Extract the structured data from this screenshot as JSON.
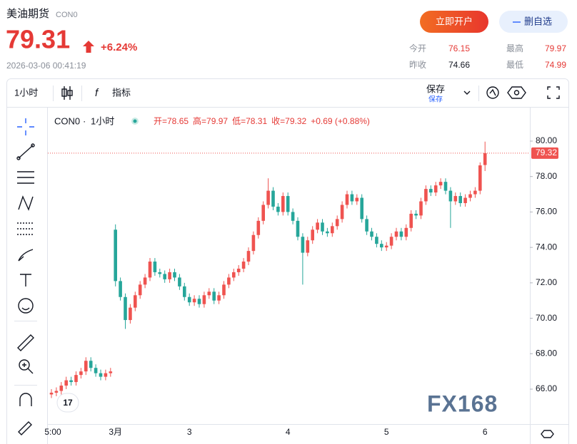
{
  "header": {
    "title": "美油期货",
    "code": "CON0",
    "price": "79.31",
    "change": "+6.24%",
    "time": "2026-03-06 00:41:19",
    "open_button": "立即开户",
    "remove_button": "删自选",
    "stats": [
      {
        "label": "今开",
        "value": "76.15"
      },
      {
        "label": "最高",
        "value": "79.97"
      },
      {
        "label": "昨收",
        "value": "74.66"
      },
      {
        "label": "最低",
        "value": "74.99"
      }
    ]
  },
  "toolbar": {
    "interval": "1小时",
    "indicators": "指标",
    "save": "保存",
    "save_sub": "保存"
  },
  "chart_data": {
    "type": "candlestick",
    "legend": {
      "symbol": "CON0",
      "interval": "1小时",
      "items": [
        "开=78.65",
        "高=79.97",
        "低=78.31",
        "收=79.32",
        "+0.69 (+0.88%)"
      ]
    },
    "categories": [
      "5:00",
      null,
      null,
      null,
      null,
      null,
      null,
      null,
      null,
      null,
      null,
      null,
      null,
      "3月",
      null,
      null,
      null,
      null,
      null,
      null,
      null,
      null,
      null,
      null,
      null,
      null,
      null,
      null,
      "3",
      null,
      null,
      null,
      null,
      null,
      null,
      null,
      null,
      null,
      null,
      null,
      null,
      null,
      null,
      null,
      null,
      null,
      null,
      null,
      "4",
      null,
      null,
      null,
      null,
      null,
      null,
      null,
      null,
      null,
      null,
      null,
      null,
      null,
      null,
      null,
      null,
      null,
      null,
      null,
      "5",
      null,
      null,
      null,
      null,
      null,
      null,
      null,
      null,
      null,
      null,
      null,
      null,
      null,
      null,
      null,
      null,
      null,
      null,
      null,
      "6"
    ],
    "open": [
      65.7,
      65.8,
      65.9,
      66.2,
      66.5,
      66.4,
      66.8,
      67.0,
      67.6,
      67.2,
      66.9,
      66.7,
      66.9,
      75.0,
      72.1,
      71.2,
      69.9,
      70.6,
      71.3,
      71.9,
      72.3,
      73.2,
      72.6,
      72.5,
      72.2,
      72.6,
      72.3,
      71.8,
      71.2,
      70.9,
      71.1,
      70.8,
      71.3,
      71.5,
      71.0,
      71.3,
      71.9,
      72.3,
      72.6,
      72.8,
      73.2,
      73.8,
      74.7,
      75.5,
      76.4,
      77.2,
      76.3,
      76.0,
      76.9,
      76.0,
      75.5,
      74.6,
      73.7,
      74.4,
      75.0,
      75.4,
      74.9,
      74.8,
      75.2,
      75.6,
      76.4,
      77.0,
      76.6,
      76.8,
      75.6,
      74.9,
      74.6,
      74.2,
      74.0,
      74.1,
      74.6,
      74.9,
      74.6,
      75.1,
      75.9,
      75.8,
      76.6,
      77.3,
      77.1,
      77.5,
      77.7,
      77.2,
      76.6,
      76.9,
      76.5,
      76.8,
      77.0,
      77.2,
      78.65
    ],
    "high": [
      66.0,
      66.1,
      66.4,
      66.7,
      66.7,
      67.0,
      67.2,
      67.8,
      67.8,
      67.4,
      67.1,
      67.1,
      67.2,
      75.3,
      72.3,
      71.4,
      70.8,
      71.5,
      72.1,
      72.5,
      73.4,
      73.4,
      72.8,
      72.7,
      72.8,
      72.8,
      72.5,
      72.0,
      71.4,
      71.3,
      71.3,
      71.5,
      71.7,
      71.7,
      71.5,
      72.1,
      72.5,
      72.8,
      73.0,
      73.4,
      74.0,
      74.9,
      75.7,
      76.6,
      77.9,
      77.4,
      76.5,
      77.1,
      77.1,
      76.2,
      75.7,
      74.8,
      74.6,
      75.2,
      75.6,
      75.6,
      75.1,
      75.4,
      75.8,
      76.6,
      77.2,
      77.2,
      77.0,
      77.0,
      75.8,
      75.1,
      74.8,
      74.4,
      74.3,
      74.8,
      75.1,
      75.1,
      75.3,
      76.1,
      76.1,
      76.8,
      77.5,
      77.5,
      77.7,
      77.9,
      77.9,
      77.4,
      77.1,
      77.1,
      77.0,
      77.2,
      77.4,
      78.8,
      79.97
    ],
    "low": [
      65.5,
      65.6,
      65.7,
      66.0,
      66.2,
      66.2,
      66.6,
      66.8,
      67.0,
      66.7,
      66.5,
      66.5,
      66.7,
      71.8,
      71.0,
      69.4,
      69.7,
      70.4,
      71.1,
      71.7,
      72.1,
      72.4,
      72.3,
      72.0,
      72.0,
      72.1,
      71.6,
      71.0,
      70.7,
      70.7,
      70.6,
      70.6,
      71.1,
      70.8,
      70.8,
      71.1,
      71.7,
      72.1,
      72.4,
      72.6,
      73.0,
      73.6,
      74.5,
      75.3,
      76.2,
      76.1,
      75.8,
      75.8,
      75.8,
      75.3,
      74.4,
      71.9,
      73.5,
      74.2,
      74.8,
      74.7,
      74.6,
      74.6,
      75.0,
      75.4,
      76.2,
      76.4,
      76.4,
      75.4,
      74.7,
      74.4,
      74.0,
      73.8,
      73.8,
      73.9,
      74.4,
      74.4,
      74.4,
      74.9,
      75.6,
      75.6,
      76.4,
      76.9,
      76.9,
      77.3,
      77.0,
      75.1,
      76.4,
      76.3,
      76.3,
      76.6,
      76.8,
      77.0,
      78.31
    ],
    "close": [
      65.8,
      65.9,
      66.2,
      66.5,
      66.4,
      66.8,
      67.0,
      67.6,
      67.2,
      66.9,
      66.7,
      66.9,
      67.0,
      72.1,
      71.2,
      69.9,
      70.6,
      71.3,
      71.9,
      72.3,
      73.2,
      72.6,
      72.5,
      72.2,
      72.6,
      72.3,
      71.8,
      71.2,
      70.9,
      71.1,
      70.8,
      71.3,
      71.5,
      71.0,
      71.3,
      71.9,
      72.3,
      72.6,
      72.8,
      73.2,
      73.8,
      74.7,
      75.5,
      76.4,
      77.2,
      76.3,
      76.0,
      76.9,
      76.0,
      75.5,
      74.6,
      73.7,
      74.4,
      75.0,
      75.4,
      74.9,
      74.8,
      75.2,
      75.6,
      76.4,
      77.0,
      76.6,
      76.8,
      75.6,
      74.9,
      74.6,
      74.2,
      74.0,
      74.1,
      74.6,
      74.9,
      74.6,
      75.1,
      75.9,
      75.8,
      76.6,
      77.3,
      77.1,
      77.5,
      77.7,
      77.2,
      76.6,
      76.9,
      76.5,
      76.8,
      77.0,
      77.2,
      78.63,
      79.32
    ],
    "up_color": "#ef5350",
    "down_color": "#26a69a",
    "ylim": [
      64.03,
      81.89
    ],
    "yticks": [
      {
        "value": 66,
        "label": "66.00"
      },
      {
        "value": 68,
        "label": "68.00"
      },
      {
        "value": 70,
        "label": "70.00"
      },
      {
        "value": 72,
        "label": "72.00"
      },
      {
        "value": 74,
        "label": "74.00"
      },
      {
        "value": 76,
        "label": "76.00"
      },
      {
        "value": 78,
        "label": "78.00"
      },
      {
        "value": 80,
        "label": "80.00"
      }
    ],
    "price_line": {
      "value": 79.32,
      "label": "79.32"
    },
    "watermark": "FX168"
  }
}
